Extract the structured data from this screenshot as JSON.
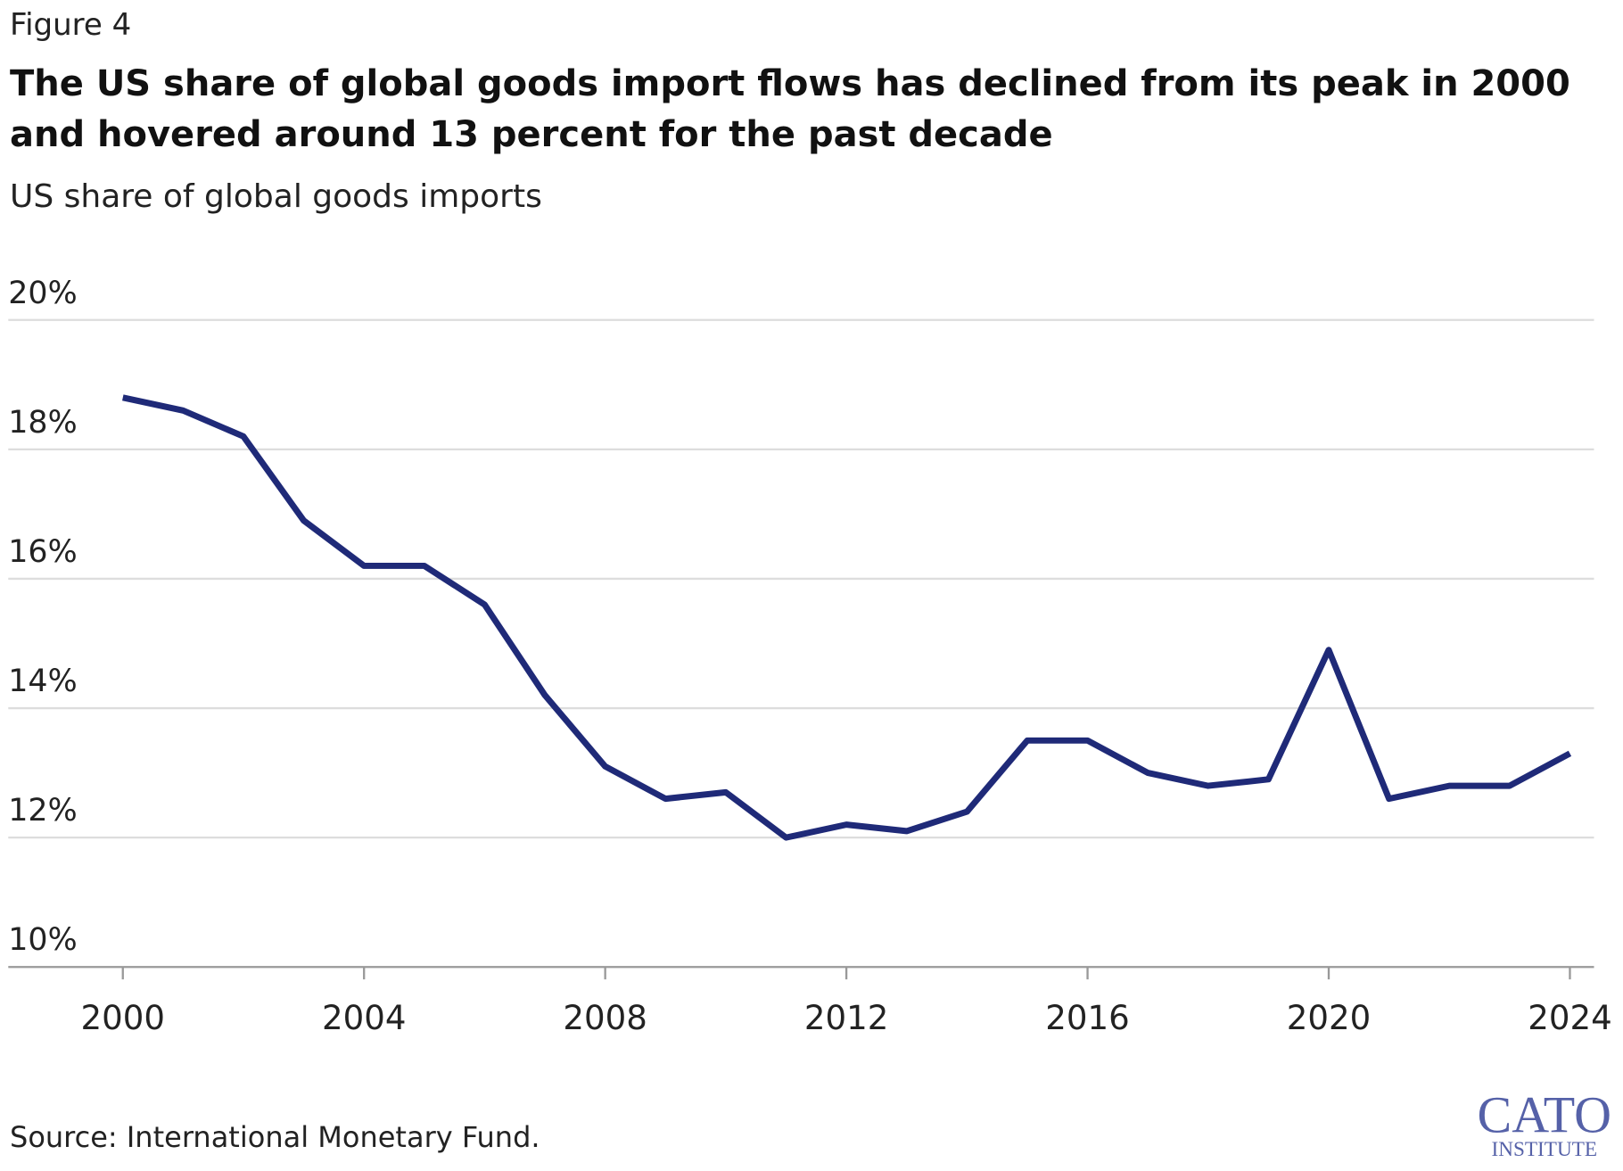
{
  "chart_data": {
    "type": "line",
    "figure_label": "Figure 4",
    "title": "The US share of global goods import flows has declined from its peak in 2000 and hovered around 13 percent for the past decade",
    "subtitle": "US share of global goods imports",
    "source": "Source: International Monetary Fund.",
    "logo": {
      "name": "CATO",
      "subname": "INSTITUTE"
    },
    "x": [
      2000,
      2001,
      2002,
      2003,
      2004,
      2005,
      2006,
      2007,
      2008,
      2009,
      2010,
      2011,
      2012,
      2013,
      2014,
      2015,
      2016,
      2017,
      2018,
      2019,
      2020,
      2021,
      2022,
      2023,
      2024
    ],
    "series": [
      {
        "name": "US share of global goods imports",
        "color": "#1f2a78",
        "values": [
          18.8,
          18.6,
          18.2,
          16.9,
          16.2,
          16.2,
          15.6,
          14.2,
          13.1,
          12.6,
          12.7,
          12.0,
          12.2,
          12.1,
          12.4,
          13.5,
          13.5,
          13.0,
          12.8,
          12.9,
          14.9,
          12.6,
          12.8,
          12.8,
          13.3
        ]
      }
    ],
    "xlim": [
      1998.1,
      2024.4
    ],
    "xticks": [
      2000,
      2004,
      2008,
      2012,
      2016,
      2020,
      2024
    ],
    "ylim": [
      10,
      20
    ],
    "yticks": [
      {
        "value": 10,
        "label": "10%"
      },
      {
        "value": 12,
        "label": "12%"
      },
      {
        "value": 14,
        "label": "14%"
      },
      {
        "value": 16,
        "label": "16%"
      },
      {
        "value": 18,
        "label": "18%"
      },
      {
        "value": 20,
        "label": "20%"
      }
    ],
    "grid": true
  }
}
